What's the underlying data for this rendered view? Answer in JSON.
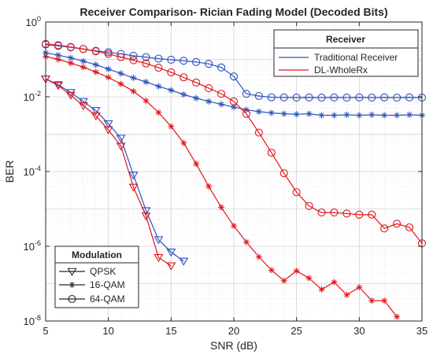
{
  "chart_data": {
    "type": "line",
    "title": "Receiver Comparison- Rician Fading Model (Decoded Bits)",
    "xlabel": "SNR (dB)",
    "ylabel": "BER",
    "xlim": [
      5,
      35
    ],
    "ylim": [
      1e-08,
      1
    ],
    "yscale": "log",
    "grid": true,
    "minor_grid": true,
    "xticks": [
      "5",
      "10",
      "15",
      "20",
      "25",
      "30",
      "35"
    ],
    "yticks": [
      {
        "base": "10",
        "exp": "0"
      },
      {
        "base": "10",
        "exp": "-2"
      },
      {
        "base": "10",
        "exp": "-4"
      },
      {
        "base": "10",
        "exp": "-6"
      },
      {
        "base": "10",
        "exp": "-8"
      }
    ],
    "legend_receiver": {
      "title": "Receiver",
      "placement": "top-right",
      "entries": [
        {
          "label": "Traditional Receiver",
          "color": "#2a52be"
        },
        {
          "label": "DL-WholeRx",
          "color": "#e0141b"
        }
      ]
    },
    "legend_modulation": {
      "title": "Modulation",
      "placement": "bottom-left",
      "entries": [
        {
          "label": "QPSK",
          "marker": "triangle-down"
        },
        {
          "label": "16-QAM",
          "marker": "asterisk"
        },
        {
          "label": "64-QAM",
          "marker": "circle"
        }
      ]
    },
    "series": [
      {
        "receiver": "Traditional Receiver",
        "modulation": "QPSK",
        "color": "#2a52be",
        "marker": "triangle-down",
        "x": [
          5,
          6,
          7,
          8,
          9,
          10,
          11,
          12,
          13,
          14,
          15,
          16
        ],
        "y": [
          0.03,
          0.021,
          0.013,
          0.0075,
          0.0043,
          0.0019,
          0.00078,
          8e-05,
          9e-06,
          1.5e-06,
          7e-07,
          4e-07
        ]
      },
      {
        "receiver": "DL-WholeRx",
        "modulation": "QPSK",
        "color": "#e0141b",
        "marker": "triangle-down",
        "x": [
          5,
          6,
          7,
          8,
          9,
          10,
          11,
          12,
          13,
          14,
          15
        ],
        "y": [
          0.03,
          0.02,
          0.011,
          0.0058,
          0.0031,
          0.0013,
          0.00048,
          3.8e-05,
          6.5e-06,
          5e-07,
          3e-07
        ]
      },
      {
        "receiver": "Traditional Receiver",
        "modulation": "16-QAM",
        "color": "#2a52be",
        "marker": "asterisk",
        "x": [
          5,
          6,
          7,
          8,
          9,
          10,
          11,
          12,
          13,
          14,
          15,
          16,
          17,
          18,
          19,
          20,
          21,
          22,
          23,
          24,
          25,
          26,
          27,
          28,
          29,
          30,
          31,
          32,
          33,
          34,
          35
        ],
        "y": [
          0.15,
          0.13,
          0.11,
          0.09,
          0.072,
          0.055,
          0.042,
          0.032,
          0.025,
          0.019,
          0.015,
          0.0115,
          0.0092,
          0.0075,
          0.0063,
          0.0053,
          0.0045,
          0.004,
          0.0037,
          0.0035,
          0.0034,
          0.0035,
          0.0032,
          0.0032,
          0.0033,
          0.0032,
          0.0033,
          0.0032,
          0.0032,
          0.0033,
          0.0032
        ]
      },
      {
        "receiver": "DL-WholeRx",
        "modulation": "16-QAM",
        "color": "#e0141b",
        "marker": "asterisk",
        "x": [
          5,
          6,
          7,
          8,
          9,
          10,
          11,
          12,
          13,
          14,
          15,
          16,
          17,
          18,
          19,
          20,
          21,
          22,
          23,
          24,
          25,
          26,
          27,
          28,
          29,
          30,
          31,
          32,
          33
        ],
        "y": [
          0.12,
          0.1,
          0.08,
          0.062,
          0.046,
          0.033,
          0.022,
          0.014,
          0.0078,
          0.0038,
          0.0016,
          0.00058,
          0.00016,
          4e-05,
          1.1e-05,
          3.5e-06,
          1.3e-06,
          5.2e-07,
          2.3e-07,
          1.2e-07,
          2.2e-07,
          1.4e-07,
          7e-08,
          1.1e-07,
          5e-08,
          8e-08,
          3.5e-08,
          3.5e-08,
          1.3e-08
        ]
      },
      {
        "receiver": "Traditional Receiver",
        "modulation": "64-QAM",
        "color": "#2a52be",
        "marker": "circle",
        "x": [
          5,
          6,
          7,
          8,
          9,
          10,
          11,
          12,
          13,
          14,
          15,
          16,
          17,
          18,
          19,
          20,
          21,
          22,
          23,
          24,
          25,
          26,
          27,
          28,
          29,
          30,
          31,
          32,
          33,
          34,
          35
        ],
        "y": [
          0.25,
          0.23,
          0.21,
          0.19,
          0.17,
          0.155,
          0.14,
          0.125,
          0.115,
          0.105,
          0.098,
          0.092,
          0.085,
          0.076,
          0.061,
          0.035,
          0.012,
          0.0105,
          0.0097,
          0.0096,
          0.0095,
          0.0096,
          0.0095,
          0.0096,
          0.0095,
          0.0096,
          0.0095,
          0.0096,
          0.0095,
          0.0096,
          0.0095
        ]
      },
      {
        "receiver": "DL-WholeRx",
        "modulation": "64-QAM",
        "color": "#e0141b",
        "marker": "circle",
        "x": [
          5,
          6,
          7,
          8,
          9,
          10,
          11,
          12,
          13,
          14,
          15,
          16,
          17,
          18,
          19,
          20,
          21,
          22,
          23,
          24,
          25,
          26,
          27,
          28,
          29,
          30,
          31,
          32,
          33,
          34,
          35
        ],
        "y": [
          0.26,
          0.24,
          0.215,
          0.19,
          0.165,
          0.14,
          0.115,
          0.095,
          0.078,
          0.06,
          0.045,
          0.033,
          0.024,
          0.017,
          0.012,
          0.0075,
          0.0035,
          0.0011,
          0.00032,
          9e-05,
          2.8e-05,
          1.2e-05,
          8e-06,
          8e-06,
          7.5e-06,
          7e-06,
          7e-06,
          3e-06,
          4e-06,
          3.2e-06,
          1.2e-06
        ]
      }
    ]
  }
}
